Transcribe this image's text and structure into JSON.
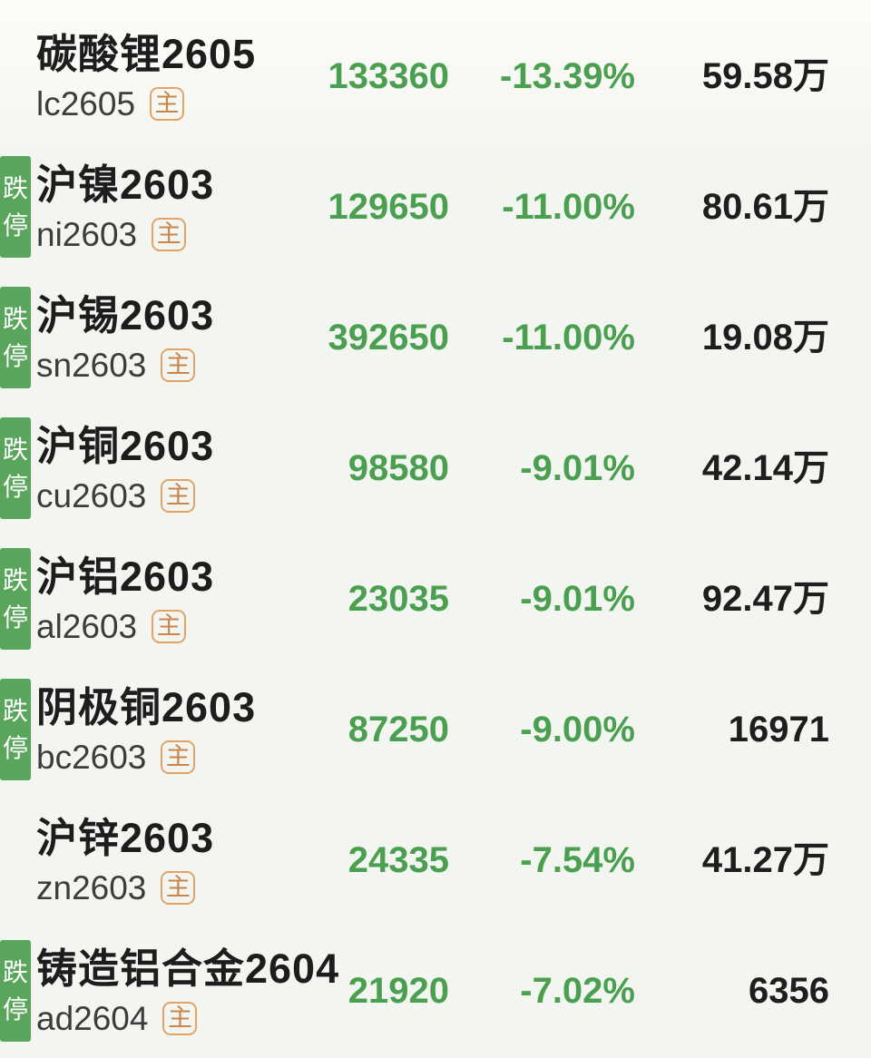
{
  "page": {
    "background": "#f3f5f0",
    "description": "futures watchlist sorted by decline"
  },
  "labels": {
    "main_contract": "主",
    "limit_down": "跌停"
  },
  "colors": {
    "green_text": "#4a9f50",
    "badge_green": "#5aa55c",
    "orange_border": "#e4a366",
    "orange_text": "#c8854a",
    "title_black": "#1d1d1d",
    "code_gray": "#3c3c3c",
    "vol_black": "#1e1e1e"
  },
  "rows": [
    {
      "name": "碳酸锂2605",
      "code": "lc2605",
      "main_contract": true,
      "limit_down": false,
      "price": "133360",
      "change": "-13.39%",
      "volume": "59.58万"
    },
    {
      "name": "沪镍2603",
      "code": "ni2603",
      "main_contract": true,
      "limit_down": true,
      "price": "129650",
      "change": "-11.00%",
      "volume": "80.61万"
    },
    {
      "name": "沪锡2603",
      "code": "sn2603",
      "main_contract": true,
      "limit_down": true,
      "price": "392650",
      "change": "-11.00%",
      "volume": "19.08万"
    },
    {
      "name": "沪铜2603",
      "code": "cu2603",
      "main_contract": true,
      "limit_down": true,
      "price": "98580",
      "change": "-9.01%",
      "volume": "42.14万"
    },
    {
      "name": "沪铝2603",
      "code": "al2603",
      "main_contract": true,
      "limit_down": true,
      "price": "23035",
      "change": "-9.01%",
      "volume": "92.47万"
    },
    {
      "name": "阴极铜2603",
      "code": "bc2603",
      "main_contract": true,
      "limit_down": true,
      "price": "87250",
      "change": "-9.00%",
      "volume": "16971"
    },
    {
      "name": "沪锌2603",
      "code": "zn2603",
      "main_contract": true,
      "limit_down": false,
      "price": "24335",
      "change": "-7.54%",
      "volume": "41.27万"
    },
    {
      "name": "铸造铝合金2604",
      "code": "ad2604",
      "main_contract": true,
      "limit_down": true,
      "price": "21920",
      "change": "-7.02%",
      "volume": "6356"
    }
  ]
}
